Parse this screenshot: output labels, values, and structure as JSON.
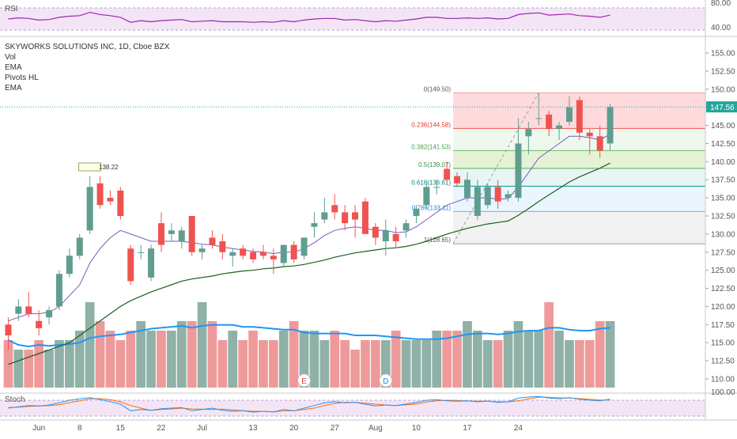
{
  "colors": {
    "up": "#26a69a",
    "up_body": "#5f9e8f",
    "down": "#ef5350",
    "vol_up": "#8fb1a7",
    "vol_down": "#ef9a9a",
    "ema_fast": "#7e57c2",
    "ema_slow": "#1b5e20",
    "vol_ma": "#2196f3",
    "rsi": "#9c27b0",
    "stoch_k": "#2196f3",
    "stoch_d": "#ff6d00",
    "band_bg": "#f3e5f5",
    "last_price_bg": "#26a69a",
    "axis_text": "#555555"
  },
  "rsi_pane": {
    "label": "RSI",
    "ticks": [
      "80.00",
      "40.00"
    ]
  },
  "main_pane": {
    "legend": [
      "SKYWORKS SOLUTIONS INC, 1D, Cboe BZX",
      "Vol",
      "EMA",
      "Pivots HL",
      "EMA"
    ],
    "price_ticks": [
      "155.00",
      "152.50",
      "150.00",
      "147.50",
      "145.00",
      "142.50",
      "140.00",
      "137.50",
      "135.00",
      "132.50",
      "130.00",
      "127.50",
      "125.00",
      "122.50",
      "120.00",
      "117.50",
      "115.00",
      "112.50",
      "110.00"
    ],
    "last_price_label": "147.56",
    "pivot_label": "138.22",
    "event_markers": [
      {
        "text": "E",
        "bar": 29
      },
      {
        "text": "D",
        "bar": 37
      }
    ]
  },
  "stoch_pane": {
    "label": "Stoch",
    "ticks": [
      "100.00"
    ]
  },
  "time_axis": {
    "labels": [
      {
        "text": "Jun",
        "bar": 3
      },
      {
        "text": "8",
        "bar": 7
      },
      {
        "text": "15",
        "bar": 11
      },
      {
        "text": "22",
        "bar": 15
      },
      {
        "text": "Jul",
        "bar": 19
      },
      {
        "text": "13",
        "bar": 24
      },
      {
        "text": "20",
        "bar": 28
      },
      {
        "text": "27",
        "bar": 32
      },
      {
        "text": "Aug",
        "bar": 36
      },
      {
        "text": "10",
        "bar": 40
      },
      {
        "text": "17",
        "bar": 45
      },
      {
        "text": "24",
        "bar": 50
      }
    ]
  },
  "chart_data": {
    "type": "candlestick",
    "title": "SKYWORKS SOLUTIONS INC, 1D, Cboe BZX",
    "ylim": [
      107.5,
      157.5
    ],
    "last_price": 147.56,
    "candles": [
      {
        "o": 117.5,
        "h": 118.5,
        "l": 114.0,
        "c": 116.0
      },
      {
        "o": 119.0,
        "h": 121.0,
        "l": 118.0,
        "c": 120.0
      },
      {
        "o": 120.0,
        "h": 122.0,
        "l": 118.5,
        "c": 119.0
      },
      {
        "o": 118.0,
        "h": 119.5,
        "l": 116.0,
        "c": 117.0
      },
      {
        "o": 118.5,
        "h": 120.0,
        "l": 117.5,
        "c": 119.5
      },
      {
        "o": 120.0,
        "h": 125.0,
        "l": 119.5,
        "c": 124.5
      },
      {
        "o": 124.5,
        "h": 128.0,
        "l": 124.0,
        "c": 127.0
      },
      {
        "o": 127.0,
        "h": 130.0,
        "l": 126.5,
        "c": 129.5
      },
      {
        "o": 130.5,
        "h": 138.0,
        "l": 130.0,
        "c": 136.5
      },
      {
        "o": 137.0,
        "h": 138.0,
        "l": 133.5,
        "c": 134.0
      },
      {
        "o": 135.0,
        "h": 136.0,
        "l": 134.0,
        "c": 134.5
      },
      {
        "o": 136.0,
        "h": 136.5,
        "l": 132.0,
        "c": 132.5
      },
      {
        "o": 128.0,
        "h": 128.5,
        "l": 123.0,
        "c": 123.5
      },
      {
        "o": 127.5,
        "h": 128.5,
        "l": 126.5,
        "c": 127.5
      },
      {
        "o": 124.0,
        "h": 128.5,
        "l": 123.5,
        "c": 128.0
      },
      {
        "o": 131.5,
        "h": 133.0,
        "l": 127.5,
        "c": 128.5
      },
      {
        "o": 130.0,
        "h": 131.5,
        "l": 129.0,
        "c": 130.5
      },
      {
        "o": 129.0,
        "h": 131.0,
        "l": 128.0,
        "c": 130.5
      },
      {
        "o": 132.5,
        "h": 132.5,
        "l": 127.0,
        "c": 127.5
      },
      {
        "o": 127.5,
        "h": 128.5,
        "l": 126.5,
        "c": 128.0
      },
      {
        "o": 129.5,
        "h": 130.5,
        "l": 128.0,
        "c": 128.5
      },
      {
        "o": 129.0,
        "h": 130.0,
        "l": 126.5,
        "c": 127.5
      },
      {
        "o": 127.0,
        "h": 128.0,
        "l": 125.5,
        "c": 127.5
      },
      {
        "o": 128.0,
        "h": 128.5,
        "l": 126.5,
        "c": 127.0
      },
      {
        "o": 127.5,
        "h": 128.0,
        "l": 126.0,
        "c": 126.5
      },
      {
        "o": 127.5,
        "h": 128.5,
        "l": 126.5,
        "c": 127.0
      },
      {
        "o": 127.0,
        "h": 128.0,
        "l": 124.5,
        "c": 126.5
      },
      {
        "o": 126.0,
        "h": 128.5,
        "l": 125.5,
        "c": 128.5
      },
      {
        "o": 128.5,
        "h": 129.0,
        "l": 126.0,
        "c": 126.5
      },
      {
        "o": 127.0,
        "h": 129.5,
        "l": 126.5,
        "c": 129.5
      },
      {
        "o": 131.0,
        "h": 133.0,
        "l": 129.5,
        "c": 131.5
      },
      {
        "o": 132.0,
        "h": 135.0,
        "l": 131.5,
        "c": 133.0
      },
      {
        "o": 134.0,
        "h": 135.5,
        "l": 132.0,
        "c": 133.0
      },
      {
        "o": 133.0,
        "h": 134.0,
        "l": 130.5,
        "c": 131.5
      },
      {
        "o": 133.0,
        "h": 134.0,
        "l": 129.5,
        "c": 132.0
      },
      {
        "o": 134.5,
        "h": 135.0,
        "l": 130.0,
        "c": 130.0
      },
      {
        "o": 131.0,
        "h": 131.5,
        "l": 128.5,
        "c": 129.5
      },
      {
        "o": 129.0,
        "h": 132.0,
        "l": 127.0,
        "c": 130.5
      },
      {
        "o": 130.0,
        "h": 131.0,
        "l": 128.0,
        "c": 129.0
      },
      {
        "o": 130.5,
        "h": 132.0,
        "l": 129.5,
        "c": 131.5
      },
      {
        "o": 132.5,
        "h": 134.0,
        "l": 131.5,
        "c": 133.5
      },
      {
        "o": 134.0,
        "h": 137.0,
        "l": 133.5,
        "c": 136.5
      },
      {
        "o": 136.5,
        "h": 137.5,
        "l": 135.5,
        "c": 136.5
      },
      {
        "o": 139.0,
        "h": 140.0,
        "l": 137.0,
        "c": 137.5
      },
      {
        "o": 138.0,
        "h": 138.5,
        "l": 136.5,
        "c": 137.0
      },
      {
        "o": 135.0,
        "h": 138.5,
        "l": 134.5,
        "c": 137.5
      },
      {
        "o": 132.5,
        "h": 137.5,
        "l": 132.0,
        "c": 136.5
      },
      {
        "o": 134.0,
        "h": 137.0,
        "l": 133.5,
        "c": 136.5
      },
      {
        "o": 136.5,
        "h": 137.5,
        "l": 133.5,
        "c": 134.5
      },
      {
        "o": 135.0,
        "h": 136.0,
        "l": 134.5,
        "c": 135.5
      },
      {
        "o": 135.0,
        "h": 146.0,
        "l": 134.5,
        "c": 142.5
      },
      {
        "o": 143.5,
        "h": 145.5,
        "l": 141.0,
        "c": 144.5
      },
      {
        "o": 146.0,
        "h": 149.5,
        "l": 145.0,
        "c": 146.0
      },
      {
        "o": 146.5,
        "h": 147.0,
        "l": 143.5,
        "c": 144.5
      },
      {
        "o": 144.5,
        "h": 145.5,
        "l": 143.0,
        "c": 145.0
      },
      {
        "o": 145.5,
        "h": 149.0,
        "l": 145.0,
        "c": 147.5
      },
      {
        "o": 148.5,
        "h": 149.0,
        "l": 143.0,
        "c": 144.0
      },
      {
        "o": 144.0,
        "h": 144.5,
        "l": 141.0,
        "c": 143.5
      },
      {
        "o": 143.5,
        "h": 145.0,
        "l": 140.5,
        "c": 141.5
      },
      {
        "o": 142.5,
        "h": 148.0,
        "l": 141.5,
        "c": 147.56
      }
    ],
    "volume": [
      5,
      4,
      4,
      5,
      4,
      5,
      5,
      6,
      9,
      7,
      6,
      5,
      6,
      7,
      6,
      6,
      6,
      7,
      7,
      9,
      7,
      5,
      6,
      5,
      6,
      5,
      5,
      6,
      7,
      6,
      6,
      5,
      6,
      5,
      4,
      5,
      5,
      5,
      6,
      5,
      5,
      5,
      6,
      6,
      6,
      7,
      6,
      5,
      5,
      6,
      7,
      6,
      6,
      9,
      6,
      5,
      5,
      5,
      7,
      7
    ],
    "fib_levels": [
      {
        "ratio": "0",
        "price": 149.5
      },
      {
        "ratio": "0.236",
        "price": 144.58
      },
      {
        "ratio": "0.382",
        "price": 141.53
      },
      {
        "ratio": "0.5",
        "price": 139.07
      },
      {
        "ratio": "0.618",
        "price": 136.61
      },
      {
        "ratio": "0.786",
        "price": 133.11
      },
      {
        "ratio": "1",
        "price": 128.65
      }
    ],
    "fib_labels": [
      "0(149.50)",
      "0.236(144.58)",
      "0.382(141.53)",
      "0.5(139.07)",
      "0.618(136.61)",
      "0.786(133.11)",
      "1(128.65)"
    ],
    "ema_fast": [
      118,
      118.5,
      119,
      119,
      119.2,
      120,
      121.5,
      123,
      126,
      128,
      129.5,
      130.5,
      130,
      129.5,
      129,
      129,
      129,
      129,
      128.8,
      128.6,
      128.5,
      128.2,
      128,
      127.8,
      127.6,
      127.5,
      127.3,
      127.5,
      127.5,
      128,
      128.8,
      129.8,
      130.5,
      130.8,
      131,
      130.8,
      130.5,
      130.5,
      130.2,
      130.3,
      131,
      132,
      133,
      134,
      134.5,
      135,
      135,
      135,
      134.8,
      134.9,
      136.5,
      138.5,
      140.5,
      141.5,
      142.5,
      143.5,
      143.5,
      143.3,
      143,
      143.8
    ],
    "ema_slow": [
      112,
      112.5,
      113,
      113.5,
      114,
      114.5,
      115,
      116,
      117,
      118,
      119,
      120,
      120.8,
      121.4,
      122,
      122.5,
      123,
      123.5,
      123.8,
      124,
      124.2,
      124.5,
      124.7,
      124.9,
      125,
      125.2,
      125.3,
      125.5,
      125.6,
      125.8,
      126.1,
      126.4,
      126.8,
      127.1,
      127.4,
      127.6,
      127.8,
      128,
      128.1,
      128.3,
      128.6,
      129,
      129.5,
      130,
      130.4,
      130.8,
      131.1,
      131.4,
      131.6,
      131.8,
      132.6,
      133.5,
      134.5,
      135.4,
      136.3,
      137.2,
      137.9,
      138.5,
      139.1,
      139.8
    ],
    "rsi": [
      60,
      62,
      61,
      58,
      59,
      63,
      65,
      66,
      72,
      68,
      66,
      63,
      54,
      57,
      55,
      57,
      58,
      59,
      55,
      56,
      57,
      55,
      55,
      55,
      54,
      55,
      54,
      57,
      55,
      58,
      60,
      61,
      61,
      58,
      59,
      57,
      55,
      57,
      56,
      58,
      60,
      63,
      63,
      61,
      61,
      62,
      61,
      62,
      60,
      61,
      68,
      70,
      71,
      67,
      68,
      69,
      66,
      65,
      63,
      67
    ],
    "stoch_k": [
      50,
      55,
      60,
      58,
      62,
      70,
      80,
      85,
      90,
      82,
      75,
      65,
      40,
      45,
      42,
      48,
      50,
      52,
      40,
      45,
      50,
      42,
      38,
      40,
      35,
      38,
      36,
      45,
      40,
      50,
      60,
      70,
      75,
      70,
      72,
      65,
      58,
      62,
      60,
      66,
      72,
      80,
      82,
      78,
      76,
      78,
      74,
      77,
      72,
      74,
      88,
      92,
      94,
      88,
      86,
      90,
      84,
      80,
      78,
      84
    ],
    "stoch_d": [
      52,
      54,
      57,
      58,
      60,
      63,
      71,
      78,
      85,
      86,
      82,
      74,
      60,
      50,
      42,
      45,
      47,
      50,
      47,
      46,
      45,
      46,
      43,
      40,
      38,
      38,
      36,
      40,
      40,
      45,
      50,
      60,
      68,
      72,
      72,
      69,
      65,
      62,
      60,
      63,
      66,
      73,
      78,
      80,
      79,
      77,
      76,
      76,
      74,
      74,
      78,
      85,
      91,
      91,
      89,
      88,
      86,
      84,
      81,
      81
    ]
  }
}
